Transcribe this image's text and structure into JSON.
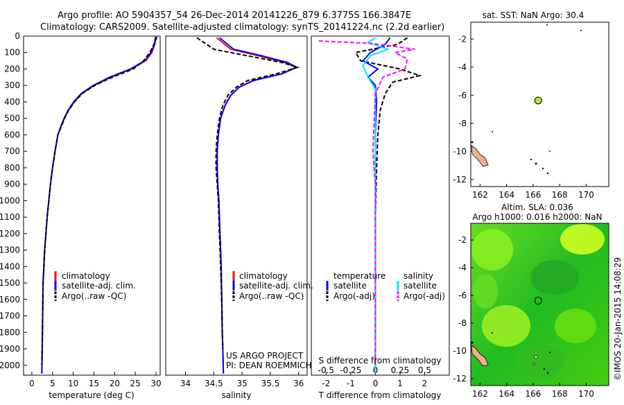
{
  "header": {
    "line1": "Argo profile: AO 5904357_54 26-Dec-2014 20141226_879 6.3775S 166.3847E",
    "line2": "Climatology: CARS2009. Satellite-adjusted climatology: synTS_20141224.nc (2.2d earlier)"
  },
  "credit": "©IMOS 20-Jan-2015 14:08:29",
  "project_note": [
    "US ARGO PROJECT",
    "PI: DEAN ROEMMICH"
  ],
  "colors": {
    "climatology": "#ff0000",
    "satellite": "#0000ff",
    "argo": "#000000",
    "s_satellite": "#00e5ff",
    "s_argo": "#ff00ff",
    "map_land": "#f0b090",
    "sla_green": "#33cc11"
  },
  "chart_data": [
    {
      "id": "temperature",
      "type": "line",
      "xlabel": "temperature (deg C)",
      "ylabel": "",
      "xlim": [
        -2,
        31
      ],
      "ylim": [
        2060,
        0
      ],
      "xticks": [
        0,
        5,
        10,
        15,
        20,
        25,
        30
      ],
      "yticks": [
        0,
        100,
        200,
        300,
        400,
        500,
        600,
        700,
        800,
        900,
        1000,
        1100,
        1200,
        1300,
        1400,
        1500,
        1600,
        1700,
        1800,
        1900,
        2000
      ],
      "legend": [
        "climatology",
        "satellite-adj. clim.",
        "Argo(..raw -QC)"
      ],
      "legend_position": "lower-right",
      "series": [
        {
          "name": "climatology",
          "x": [
            30,
            29.7,
            29,
            27.5,
            24,
            19,
            15,
            12,
            10.2,
            8.8,
            7.8,
            7,
            6.3,
            5.6,
            5,
            4.5,
            4.1,
            3.7,
            3.4,
            3.1,
            2.9,
            2.7,
            2.6,
            2.5,
            2.4
          ],
          "y": [
            5,
            50,
            100,
            150,
            200,
            250,
            300,
            350,
            400,
            450,
            500,
            550,
            600,
            700,
            800,
            900,
            1000,
            1100,
            1200,
            1300,
            1400,
            1500,
            1700,
            1900,
            2050
          ]
        },
        {
          "name": "satellite-adj. clim.",
          "x": [
            29.9,
            29.6,
            28.8,
            27.3,
            23.8,
            18.8,
            14.8,
            11.9,
            10.1,
            8.8,
            7.8,
            7,
            6.3,
            5.6,
            5,
            4.5,
            4.1,
            3.7,
            3.4,
            3.1,
            2.9,
            2.7,
            2.6,
            2.5,
            2.4
          ],
          "y": [
            5,
            50,
            100,
            150,
            200,
            250,
            300,
            350,
            400,
            450,
            500,
            550,
            600,
            700,
            800,
            900,
            1000,
            1100,
            1200,
            1300,
            1400,
            1500,
            1700,
            1900,
            2050
          ]
        },
        {
          "name": "Argo(..raw -QC)",
          "x": [
            30.2,
            29.5,
            28.5,
            27,
            24.5,
            19.5,
            15.2,
            12.1,
            10.3,
            8.9,
            7.9,
            7.1,
            6.3,
            5.6,
            5,
            4.5,
            4.1,
            3.7,
            3.4,
            3.1,
            2.9,
            2.7,
            2.6,
            2.5,
            2.4
          ],
          "y": [
            5,
            50,
            100,
            150,
            200,
            250,
            300,
            350,
            400,
            450,
            500,
            550,
            600,
            700,
            800,
            900,
            1000,
            1100,
            1200,
            1300,
            1400,
            1500,
            1700,
            1900,
            2000
          ]
        }
      ]
    },
    {
      "id": "salinity",
      "type": "line",
      "xlabel": "salinity",
      "ylabel": "",
      "xlim": [
        33.65,
        36.15
      ],
      "ylim": [
        2060,
        0
      ],
      "xticks": [
        34,
        34.5,
        35,
        35.5,
        36
      ],
      "legend": [
        "climatology",
        "satellite-adj. clim.",
        "Argo(..raw -QC)"
      ],
      "legend_position": "lower-right",
      "series": [
        {
          "name": "climatology",
          "x": [
            34.55,
            34.8,
            35.3,
            35.75,
            35.95,
            35.7,
            35.2,
            34.95,
            34.8,
            34.7,
            34.62,
            34.58,
            34.56,
            34.56,
            34.57,
            34.59,
            34.61,
            34.63,
            34.64,
            34.65,
            34.66,
            34.67
          ],
          "y": [
            10,
            80,
            120,
            160,
            190,
            230,
            270,
            310,
            360,
            420,
            500,
            600,
            700,
            800,
            900,
            1000,
            1200,
            1400,
            1600,
            1800,
            1900,
            2050
          ]
        },
        {
          "name": "satellite-adj. clim.",
          "x": [
            34.6,
            34.85,
            35.35,
            35.8,
            35.97,
            35.7,
            35.2,
            34.95,
            34.8,
            34.7,
            34.62,
            34.58,
            34.56,
            34.56,
            34.57,
            34.59,
            34.61,
            34.63,
            34.64,
            34.65,
            34.66,
            34.67
          ],
          "y": [
            10,
            80,
            120,
            160,
            190,
            230,
            270,
            310,
            360,
            420,
            500,
            600,
            700,
            800,
            900,
            1000,
            1200,
            1400,
            1600,
            1800,
            1900,
            2050
          ]
        },
        {
          "name": "Argo(..raw -QC)",
          "x": [
            34.2,
            34.5,
            35.1,
            35.7,
            35.98,
            35.6,
            35.1,
            34.9,
            34.75,
            34.66,
            34.6,
            34.56,
            34.54,
            34.54,
            34.56,
            34.58,
            34.6,
            34.62,
            34.64,
            34.65,
            34.66
          ],
          "y": [
            10,
            80,
            120,
            160,
            190,
            230,
            270,
            310,
            360,
            420,
            500,
            600,
            700,
            800,
            900,
            1000,
            1200,
            1400,
            1600,
            1800,
            1900
          ]
        }
      ]
    },
    {
      "id": "difference",
      "type": "line",
      "xlabel": "T difference from climatology",
      "x2label": "S difference from climatology",
      "xlim": [
        -2.6,
        3.0
      ],
      "ylim": [
        2060,
        0
      ],
      "xticks": [
        -2,
        -1,
        0,
        1,
        2
      ],
      "x2ticks": [
        -0.5,
        -0.25,
        0,
        0.25,
        0.5
      ],
      "legend_groups": [
        {
          "title": "temperature",
          "items": [
            "satellite",
            "Argo(-adj)"
          ]
        },
        {
          "title": "salinity",
          "items": [
            "satellite",
            "Argo(-adj)"
          ]
        }
      ],
      "legend_position": "lower-center",
      "series": [
        {
          "name": "T satellite",
          "x": [
            0.6,
            0.4,
            -0.2,
            -0.5,
            0.1,
            -0.3,
            0,
            0.05,
            0,
            0,
            0,
            0,
            0,
            0
          ],
          "y": [
            10,
            50,
            100,
            150,
            200,
            250,
            300,
            400,
            600,
            800,
            1000,
            1400,
            1800,
            2050
          ]
        },
        {
          "name": "T Argo(-adj)",
          "x": [
            1.3,
            0.9,
            -0.8,
            -0.6,
            1.0,
            1.8,
            0.7,
            0.4,
            0.2,
            0.1,
            0.05,
            0,
            0,
            0
          ],
          "y": [
            10,
            50,
            100,
            150,
            200,
            240,
            280,
            350,
            450,
            600,
            800,
            1100,
            1500,
            2000
          ]
        },
        {
          "name": "S satellite",
          "x": [
            0,
            -0.3,
            0.5,
            -0.2,
            -0.5,
            -0.3,
            0,
            0,
            0,
            0,
            0,
            0
          ],
          "y": [
            10,
            40,
            80,
            120,
            180,
            250,
            320,
            450,
            700,
            1000,
            1500,
            2050
          ]
        },
        {
          "name": "S Argo(-adj)",
          "x": [
            -2.3,
            -0.1,
            1.6,
            0.8,
            1.3,
            1.2,
            0.3,
            0,
            -0.1,
            0,
            0,
            0
          ],
          "y": [
            30,
            45,
            80,
            100,
            140,
            200,
            250,
            350,
            700,
            900,
            1300,
            2000
          ]
        }
      ]
    },
    {
      "id": "sst_map",
      "type": "scatter",
      "title": "sat. SST: NaN Argo: 30.4",
      "xlim": [
        161.3,
        171.7
      ],
      "ylim": [
        -12.5,
        -0.8
      ],
      "xticks": [
        162,
        164,
        166,
        168,
        170
      ],
      "yticks": [
        -2,
        -4,
        -6,
        -8,
        -10,
        -12
      ],
      "argo_position": {
        "lon": 166.3847,
        "lat": -6.3775
      }
    },
    {
      "id": "sla_map",
      "type": "heatmap",
      "title": "Altim. SLA: 0.036",
      "subtitle": "Argo h1000: 0.016 h2000: NaN",
      "xlim": [
        161.3,
        171.7
      ],
      "ylim": [
        -12.5,
        -0.8
      ],
      "xticks": [
        162,
        164,
        166,
        168,
        170
      ],
      "yticks": [
        -2,
        -4,
        -6,
        -8,
        -10,
        -12
      ],
      "argo_position": {
        "lon": 166.3847,
        "lat": -6.3775
      }
    }
  ]
}
